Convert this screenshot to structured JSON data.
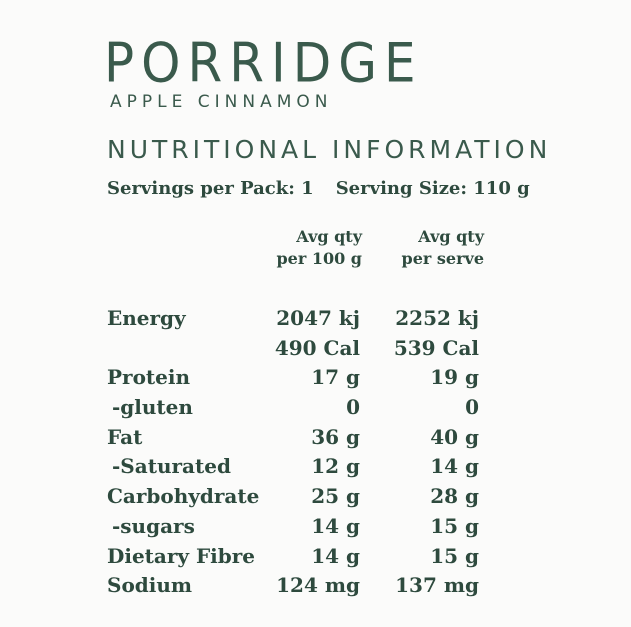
{
  "brand": "PORRIDGE",
  "subtitle": "APPLE CINNAMON",
  "section_title": "NUTRITIONAL INFORMATION",
  "servings_per_pack": "Servings per Pack: 1",
  "serving_size": "Serving Size: 110 g",
  "columns": {
    "per100_line1": "Avg qty",
    "per100_line2": "per 100 g",
    "serve_line1": "Avg qty",
    "serve_line2": "per serve"
  },
  "rows": [
    {
      "label": "Energy",
      "per100": "2047 kj",
      "serve": "2252 kj"
    },
    {
      "label": "",
      "per100": "490 Cal",
      "serve": "539 Cal"
    },
    {
      "label": "Protein",
      "per100": "17 g",
      "serve": "19 g"
    },
    {
      "label": "-gluten",
      "per100": "0",
      "serve": "0"
    },
    {
      "label": "Fat",
      "per100": "36 g",
      "serve": "40 g"
    },
    {
      "label": "-Saturated",
      "per100": "12 g",
      "serve": "14 g"
    },
    {
      "label": "Carbohydrate",
      "per100": "25 g",
      "serve": "28 g"
    },
    {
      "label": "-sugars",
      "per100": "14 g",
      "serve": "15 g"
    },
    {
      "label": "Dietary Fibre",
      "per100": "14 g",
      "serve": "15 g"
    },
    {
      "label": "Sodium",
      "per100": "124 mg",
      "serve": "137 mg"
    }
  ],
  "colors": {
    "text": "#2e4a3e",
    "heading": "#3a5a4c",
    "background": "#fbfbfa"
  }
}
